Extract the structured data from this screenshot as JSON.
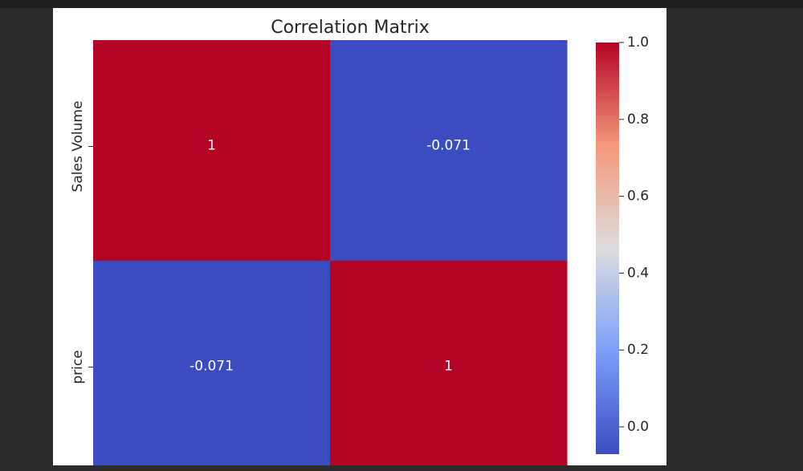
{
  "chart_data": {
    "type": "heatmap",
    "title": "Correlation Matrix",
    "row_labels": [
      "Sales Volume",
      "price"
    ],
    "col_labels": [],
    "values": [
      [
        1.0,
        -0.071
      ],
      [
        -0.071,
        1.0
      ]
    ],
    "annotations": [
      [
        "1",
        "-0.071"
      ],
      [
        "-0.071",
        "1"
      ]
    ],
    "colormap": "coolwarm",
    "colorbar": {
      "range": [
        -0.071,
        1.0
      ],
      "ticks": [
        0.0,
        0.2,
        0.4,
        0.6,
        0.8,
        1.0
      ],
      "tick_labels": [
        "0.0",
        "0.2",
        "0.4",
        "0.6",
        "0.8",
        "1.0"
      ]
    },
    "colors": {
      "high": "#b40426",
      "low": "#3b4cc0",
      "mid": "#dddddd"
    }
  }
}
